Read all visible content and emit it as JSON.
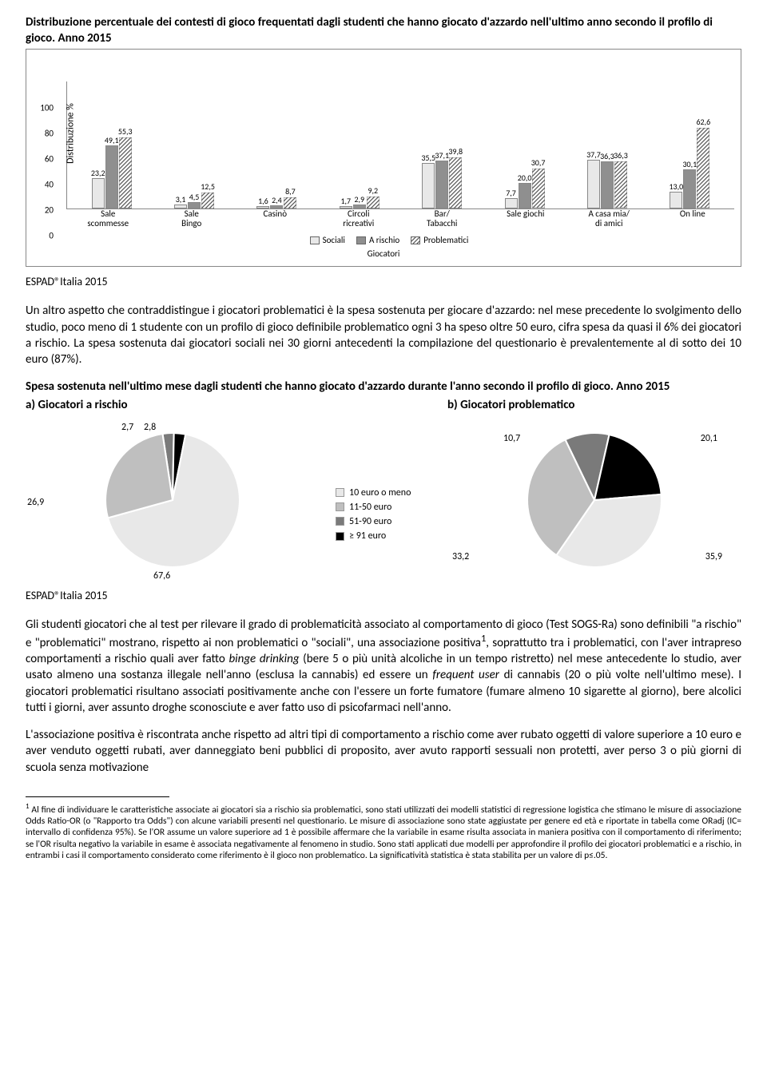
{
  "bar_chart": {
    "title": "Distribuzione percentuale dei contesti di gioco frequentati dagli studenti che hanno giocato d'azzardo nell'ultimo anno secondo il profilo di gioco. Anno 2015",
    "y_label": "Distribuzione %",
    "y_max": 100,
    "y_ticks": [
      0,
      20,
      40,
      60,
      80,
      100
    ],
    "series_names": [
      "Sociali",
      "A rischio",
      "Problematici"
    ],
    "series_colors": [
      "#e8e8e8",
      "#8f8f8f"
    ],
    "series_hatch_index": 2,
    "sub_legend": "Giocatori",
    "categories": [
      {
        "label_lines": [
          "Sale",
          "scommesse"
        ],
        "values": [
          23.2,
          49.1,
          55.3
        ]
      },
      {
        "label_lines": [
          "Sale",
          "Bingo"
        ],
        "values": [
          3.1,
          4.5,
          12.5
        ]
      },
      {
        "label_lines": [
          "Casinò"
        ],
        "values": [
          1.6,
          2.4,
          8.7
        ]
      },
      {
        "label_lines": [
          "Circoli",
          "ricreativi"
        ],
        "values": [
          1.7,
          2.9,
          9.2
        ]
      },
      {
        "label_lines": [
          "Bar/",
          "Tabacchi"
        ],
        "values": [
          35.5,
          37.1,
          39.8
        ]
      },
      {
        "label_lines": [
          "Sale giochi"
        ],
        "values": [
          7.7,
          20.0,
          30.7
        ]
      },
      {
        "label_lines": [
          "A casa mia/",
          "di amici"
        ],
        "values": [
          37.7,
          36.3,
          36.3
        ]
      },
      {
        "label_lines": [
          "On line"
        ],
        "values": [
          13.0,
          30.1,
          62.6
        ]
      }
    ]
  },
  "source_label": "ESPAD®Italia 2015",
  "para1": "Un altro aspetto che contraddistingue i giocatori problematici è la spesa sostenuta per giocare d'azzardo: nel mese precedente lo svolgimento dello studio, poco meno di 1 studente con un profilo di gioco definibile problematico ogni 3 ha speso oltre 50 euro, cifra spesa da quasi il 6% dei giocatori a rischio. La spesa sostenuta dai giocatori sociali nei 30 giorni antecedenti la compilazione del questionario è prevalentemente al di sotto dei 10 euro (87%).",
  "pie_section": {
    "heading": "Spesa sostenuta nell'ultimo mese dagli studenti che hanno giocato d'azzardo durante l'anno secondo il profilo di gioco. Anno 2015",
    "left_title": "a) Giocatori a rischio",
    "right_title": "b) Giocatori problematico",
    "legend_items": [
      "10 euro o meno",
      "11-50 euro",
      "51-90 euro",
      "≥ 91 euro"
    ],
    "legend_colors": [
      "#e8e8e8",
      "#bfbfbf",
      "#7a7a7a",
      "#000000"
    ],
    "left": {
      "slices": [
        {
          "value": 67.6,
          "color": "#e8e8e8"
        },
        {
          "value": 26.9,
          "color": "#bfbfbf"
        },
        {
          "value": 2.7,
          "color": "#7a7a7a"
        },
        {
          "value": 2.8,
          "color": "#000000"
        }
      ]
    },
    "right": {
      "slices": [
        {
          "value": 35.9,
          "color": "#e8e8e8"
        },
        {
          "value": 33.2,
          "color": "#bfbfbf"
        },
        {
          "value": 10.7,
          "color": "#7a7a7a"
        },
        {
          "value": 20.1,
          "color": "#000000"
        }
      ]
    }
  },
  "para2_html": "Gli studenti giocatori che al test per rilevare il grado di problematicità associato al comportamento di gioco (Test SOGS-Ra) sono definibili \"a rischio\" e \"problematici\" mostrano, rispetto ai non problematici o \"sociali\", una associazione positiva<sup>1</sup>, soprattutto tra i problematici, con l'aver intrapreso comportamenti a rischio quali aver fatto <i>binge drinking</i> (bere 5 o più unità alcoliche in un tempo ristretto) nel mese antecedente lo studio, aver usato almeno una sostanza illegale nell'anno (esclusa la cannabis) ed essere un <i>frequent user</i> di cannabis (20 o più volte nell'ultimo mese). I giocatori problematici risultano associati positivamente anche con l'essere un forte fumatore (fumare almeno 10 sigarette al giorno), bere alcolici tutti i giorni, aver assunto droghe sconosciute e aver fatto uso di psicofarmaci nell'anno.",
  "para3": "L'associazione positiva è riscontrata anche rispetto ad altri tipi di comportamento a rischio come aver rubato oggetti di valore superiore a 10 euro e aver venduto oggetti rubati, aver danneggiato beni pubblici di proposito, aver avuto rapporti sessuali non protetti, aver perso 3 o più giorni di scuola senza motivazione",
  "footnote": "Al fine di individuare le caratteristiche associate ai giocatori sia a rischio sia problematici, sono stati utilizzati dei modelli statistici di regressione logistica che stimano le misure di associazione Odds Ratio-OR (o \"Rapporto tra Odds\") con alcune variabili presenti nel questionario. Le misure di associazione sono state aggiustate per genere ed età e riportate in tabella come ORadj (IC= intervallo di confidenza 95%). Se l'OR assume un valore superiore ad 1 è possibile affermare che la variabile in esame risulta associata in maniera positiva con il comportamento di riferimento; se l'OR risulta negativo la variabile in esame è associata negativamente al fenomeno in studio. Sono stati applicati due modelli per approfondire il profilo dei giocatori problematici e a rischio, in entrambi i casi il comportamento considerato come riferimento è il gioco non problematico. La significatività statistica è stata stabilita per un valore di p≤.05."
}
